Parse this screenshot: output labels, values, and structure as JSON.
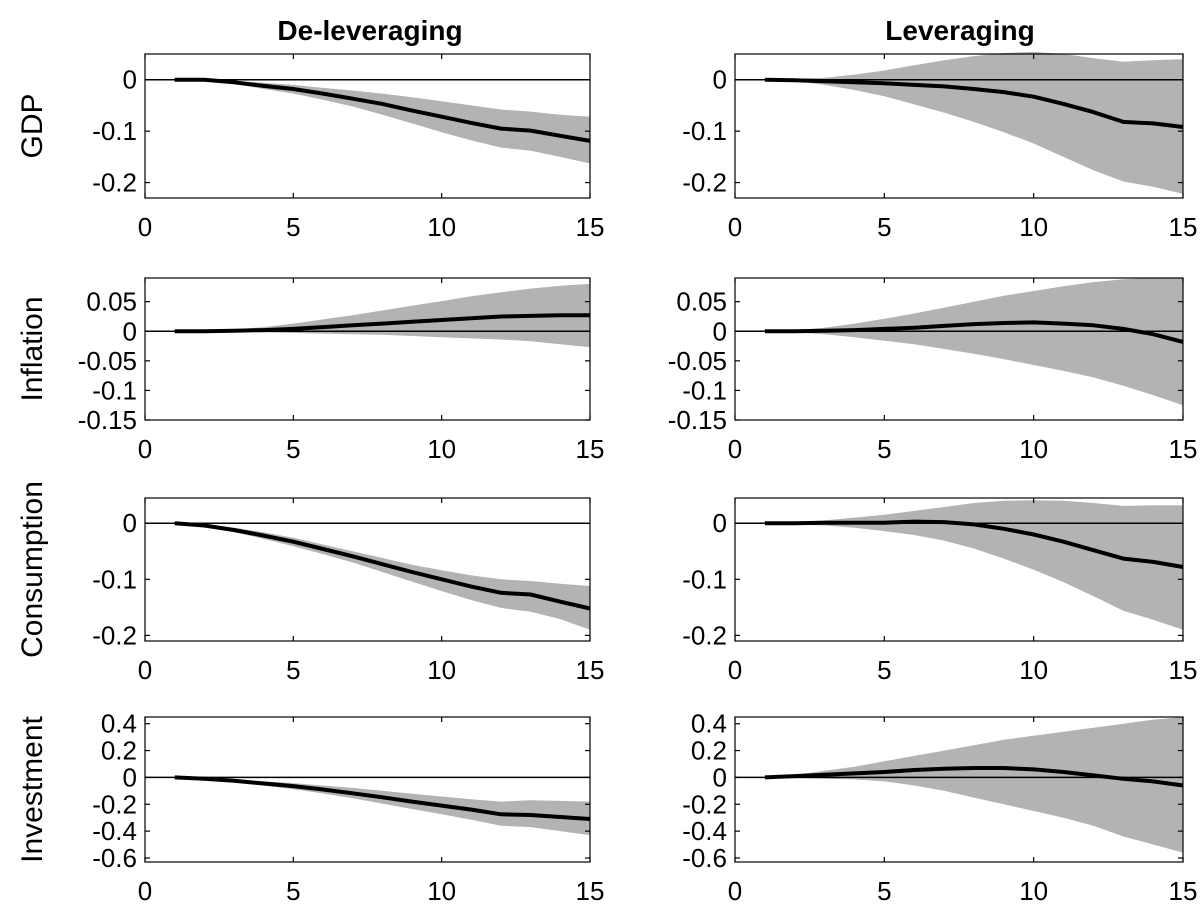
{
  "columns": [
    "De-leveraging",
    "Leveraging"
  ],
  "colors": {
    "band": "#b3b3b3",
    "line": "#000000",
    "zero": "#000000"
  },
  "chart_data": [
    {
      "type": "line",
      "column": "De-leveraging",
      "ylabel": "GDP",
      "xlim": [
        0,
        15
      ],
      "ylim": [
        -0.23,
        0.05
      ],
      "xticks": [
        0,
        5,
        10,
        15
      ],
      "yticks": [
        0,
        -0.1,
        -0.2
      ],
      "ytick_labels": [
        "0",
        "-0.1",
        "-0.2"
      ],
      "x": [
        1,
        2,
        3,
        4,
        5,
        6,
        7,
        8,
        9,
        10,
        11,
        12,
        13,
        14,
        15
      ],
      "series": [
        {
          "values": [
            0,
            0,
            -0.005,
            -0.012,
            -0.018,
            -0.027,
            -0.037,
            -0.047,
            -0.06,
            -0.072,
            -0.084,
            -0.095,
            -0.099,
            -0.109,
            -0.119
          ]
        },
        {
          "role": "upper",
          "values": [
            0,
            0,
            -0.002,
            -0.006,
            -0.01,
            -0.016,
            -0.021,
            -0.027,
            -0.034,
            -0.042,
            -0.05,
            -0.058,
            -0.062,
            -0.068,
            -0.072
          ]
        },
        {
          "role": "lower",
          "values": [
            0,
            0,
            -0.008,
            -0.018,
            -0.027,
            -0.039,
            -0.052,
            -0.068,
            -0.085,
            -0.102,
            -0.118,
            -0.132,
            -0.138,
            -0.15,
            -0.163
          ]
        }
      ]
    },
    {
      "type": "line",
      "column": "Leveraging",
      "ylabel": "",
      "xlim": [
        0,
        15
      ],
      "ylim": [
        -0.23,
        0.05
      ],
      "xticks": [
        0,
        5,
        10,
        15
      ],
      "yticks": [
        0,
        -0.1,
        -0.2
      ],
      "ytick_labels": [
        "0",
        "-0.1",
        "-0.2"
      ],
      "x": [
        1,
        2,
        3,
        4,
        5,
        6,
        7,
        8,
        9,
        10,
        11,
        12,
        13,
        14,
        15
      ],
      "series": [
        {
          "values": [
            0,
            -0.001,
            -0.003,
            -0.005,
            -0.007,
            -0.01,
            -0.013,
            -0.018,
            -0.024,
            -0.033,
            -0.047,
            -0.063,
            -0.082,
            -0.085,
            -0.092
          ]
        },
        {
          "role": "upper",
          "values": [
            0,
            0.002,
            0.004,
            0.01,
            0.018,
            0.028,
            0.038,
            0.046,
            0.052,
            0.054,
            0.05,
            0.042,
            0.035,
            0.038,
            0.04
          ]
        },
        {
          "role": "lower",
          "values": [
            0,
            -0.003,
            -0.01,
            -0.02,
            -0.032,
            -0.048,
            -0.064,
            -0.082,
            -0.102,
            -0.124,
            -0.15,
            -0.176,
            -0.198,
            -0.208,
            -0.222
          ]
        }
      ]
    },
    {
      "type": "line",
      "column": "De-leveraging",
      "ylabel": "Inflation",
      "xlim": [
        0,
        15
      ],
      "ylim": [
        -0.15,
        0.09
      ],
      "xticks": [
        0,
        5,
        10,
        15
      ],
      "yticks": [
        0.05,
        0,
        -0.05,
        -0.1,
        -0.15
      ],
      "ytick_labels": [
        "0.05",
        "0",
        "-0.05",
        "-0.1",
        "-0.15"
      ],
      "x": [
        1,
        2,
        3,
        4,
        5,
        6,
        7,
        8,
        9,
        10,
        11,
        12,
        13,
        14,
        15
      ],
      "series": [
        {
          "values": [
            0,
            0,
            0.001,
            0.002,
            0.004,
            0.007,
            0.01,
            0.013,
            0.016,
            0.019,
            0.022,
            0.025,
            0.026,
            0.027,
            0.027
          ]
        },
        {
          "role": "upper",
          "values": [
            0,
            0.001,
            0.003,
            0.007,
            0.013,
            0.02,
            0.027,
            0.035,
            0.043,
            0.051,
            0.059,
            0.066,
            0.072,
            0.077,
            0.08
          ]
        },
        {
          "role": "lower",
          "values": [
            0,
            -0.001,
            -0.001,
            -0.002,
            -0.003,
            -0.004,
            -0.005,
            -0.006,
            -0.008,
            -0.01,
            -0.012,
            -0.014,
            -0.017,
            -0.022,
            -0.027
          ]
        }
      ]
    },
    {
      "type": "line",
      "column": "Leveraging",
      "ylabel": "",
      "xlim": [
        0,
        15
      ],
      "ylim": [
        -0.15,
        0.09
      ],
      "xticks": [
        0,
        5,
        10,
        15
      ],
      "yticks": [
        0.05,
        0,
        -0.05,
        -0.1,
        -0.15
      ],
      "ytick_labels": [
        "0.05",
        "0",
        "-0.05",
        "-0.1",
        "-0.15"
      ],
      "x": [
        1,
        2,
        3,
        4,
        5,
        6,
        7,
        8,
        9,
        10,
        11,
        12,
        13,
        14,
        15
      ],
      "series": [
        {
          "values": [
            0,
            0,
            0.001,
            0.002,
            0.004,
            0.006,
            0.009,
            0.012,
            0.014,
            0.015,
            0.013,
            0.01,
            0.004,
            -0.005,
            -0.018
          ]
        },
        {
          "role": "upper",
          "values": [
            0,
            0.002,
            0.006,
            0.013,
            0.021,
            0.03,
            0.04,
            0.05,
            0.06,
            0.068,
            0.076,
            0.083,
            0.088,
            0.09,
            0.09
          ]
        },
        {
          "role": "lower",
          "values": [
            0,
            -0.002,
            -0.005,
            -0.01,
            -0.016,
            -0.022,
            -0.03,
            -0.038,
            -0.047,
            -0.057,
            -0.067,
            -0.078,
            -0.092,
            -0.108,
            -0.125
          ]
        }
      ]
    },
    {
      "type": "line",
      "column": "De-leveraging",
      "ylabel": "Consumption",
      "xlim": [
        0,
        15
      ],
      "ylim": [
        -0.21,
        0.045
      ],
      "xticks": [
        0,
        5,
        10,
        15
      ],
      "yticks": [
        0,
        -0.1,
        -0.2
      ],
      "ytick_labels": [
        "0",
        "-0.1",
        "-0.2"
      ],
      "x": [
        1,
        2,
        3,
        4,
        5,
        6,
        7,
        8,
        9,
        10,
        11,
        12,
        13,
        14,
        15
      ],
      "series": [
        {
          "values": [
            0,
            -0.004,
            -0.012,
            -0.022,
            -0.033,
            -0.046,
            -0.059,
            -0.073,
            -0.087,
            -0.1,
            -0.113,
            -0.124,
            -0.127,
            -0.14,
            -0.152
          ]
        },
        {
          "role": "upper",
          "values": [
            0,
            -0.002,
            -0.008,
            -0.016,
            -0.026,
            -0.038,
            -0.05,
            -0.062,
            -0.074,
            -0.084,
            -0.093,
            -0.1,
            -0.103,
            -0.108,
            -0.112
          ]
        },
        {
          "role": "lower",
          "values": [
            0,
            -0.006,
            -0.016,
            -0.028,
            -0.041,
            -0.055,
            -0.07,
            -0.087,
            -0.104,
            -0.121,
            -0.137,
            -0.151,
            -0.158,
            -0.171,
            -0.19
          ]
        }
      ]
    },
    {
      "type": "line",
      "column": "Leveraging",
      "ylabel": "",
      "xlim": [
        0,
        15
      ],
      "ylim": [
        -0.21,
        0.045
      ],
      "xticks": [
        0,
        5,
        10,
        15
      ],
      "yticks": [
        0,
        -0.1,
        -0.2
      ],
      "ytick_labels": [
        "0",
        "-0.1",
        "-0.2"
      ],
      "x": [
        1,
        2,
        3,
        4,
        5,
        6,
        7,
        8,
        9,
        10,
        11,
        12,
        13,
        14,
        15
      ],
      "series": [
        {
          "values": [
            0,
            0,
            0.001,
            0.001,
            0.001,
            0.003,
            0.002,
            -0.002,
            -0.01,
            -0.02,
            -0.033,
            -0.048,
            -0.063,
            -0.069,
            -0.078
          ]
        },
        {
          "role": "upper",
          "values": [
            0,
            0.002,
            0.005,
            0.01,
            0.015,
            0.022,
            0.029,
            0.036,
            0.04,
            0.041,
            0.04,
            0.036,
            0.031,
            0.032,
            0.032
          ]
        },
        {
          "role": "lower",
          "values": [
            0,
            -0.002,
            -0.004,
            -0.008,
            -0.014,
            -0.021,
            -0.031,
            -0.045,
            -0.063,
            -0.083,
            -0.105,
            -0.13,
            -0.156,
            -0.172,
            -0.19
          ]
        }
      ]
    },
    {
      "type": "line",
      "column": "De-leveraging",
      "ylabel": "Investment",
      "xlim": [
        0,
        15
      ],
      "ylim": [
        -0.63,
        0.45
      ],
      "xticks": [
        0,
        5,
        10,
        15
      ],
      "yticks": [
        0.4,
        0.2,
        0,
        -0.2,
        -0.4,
        -0.6
      ],
      "ytick_labels": [
        "0.4",
        "0.2",
        "0",
        "-0.2",
        "-0.4",
        "-0.6"
      ],
      "x": [
        1,
        2,
        3,
        4,
        5,
        6,
        7,
        8,
        9,
        10,
        11,
        12,
        13,
        14,
        15
      ],
      "series": [
        {
          "values": [
            0,
            -0.01,
            -0.025,
            -0.045,
            -0.065,
            -0.09,
            -0.118,
            -0.148,
            -0.18,
            -0.21,
            -0.24,
            -0.275,
            -0.28,
            -0.295,
            -0.31
          ]
        },
        {
          "role": "upper",
          "values": [
            0,
            -0.005,
            -0.015,
            -0.028,
            -0.042,
            -0.06,
            -0.078,
            -0.1,
            -0.122,
            -0.142,
            -0.162,
            -0.18,
            -0.17,
            -0.175,
            -0.18
          ]
        },
        {
          "role": "lower",
          "values": [
            0,
            -0.015,
            -0.035,
            -0.06,
            -0.088,
            -0.12,
            -0.155,
            -0.195,
            -0.235,
            -0.275,
            -0.315,
            -0.36,
            -0.37,
            -0.4,
            -0.43
          ]
        }
      ]
    },
    {
      "type": "line",
      "column": "Leveraging",
      "ylabel": "",
      "xlim": [
        0,
        15
      ],
      "ylim": [
        -0.63,
        0.45
      ],
      "xticks": [
        0,
        5,
        10,
        15
      ],
      "yticks": [
        0.4,
        0.2,
        0,
        -0.2,
        -0.4,
        -0.6
      ],
      "ytick_labels": [
        "0.4",
        "0.2",
        "0",
        "-0.2",
        "-0.4",
        "-0.6"
      ],
      "x": [
        1,
        2,
        3,
        4,
        5,
        6,
        7,
        8,
        9,
        10,
        11,
        12,
        13,
        14,
        15
      ],
      "series": [
        {
          "values": [
            0,
            0.01,
            0.02,
            0.03,
            0.04,
            0.055,
            0.065,
            0.07,
            0.07,
            0.06,
            0.04,
            0.015,
            -0.01,
            -0.03,
            -0.06
          ]
        },
        {
          "role": "upper",
          "values": [
            0,
            0.02,
            0.05,
            0.08,
            0.12,
            0.16,
            0.2,
            0.24,
            0.28,
            0.31,
            0.34,
            0.37,
            0.4,
            0.43,
            0.45
          ]
        },
        {
          "role": "lower",
          "values": [
            0,
            -0.005,
            -0.01,
            -0.015,
            -0.03,
            -0.06,
            -0.1,
            -0.15,
            -0.2,
            -0.25,
            -0.3,
            -0.36,
            -0.44,
            -0.5,
            -0.56
          ]
        }
      ]
    }
  ]
}
